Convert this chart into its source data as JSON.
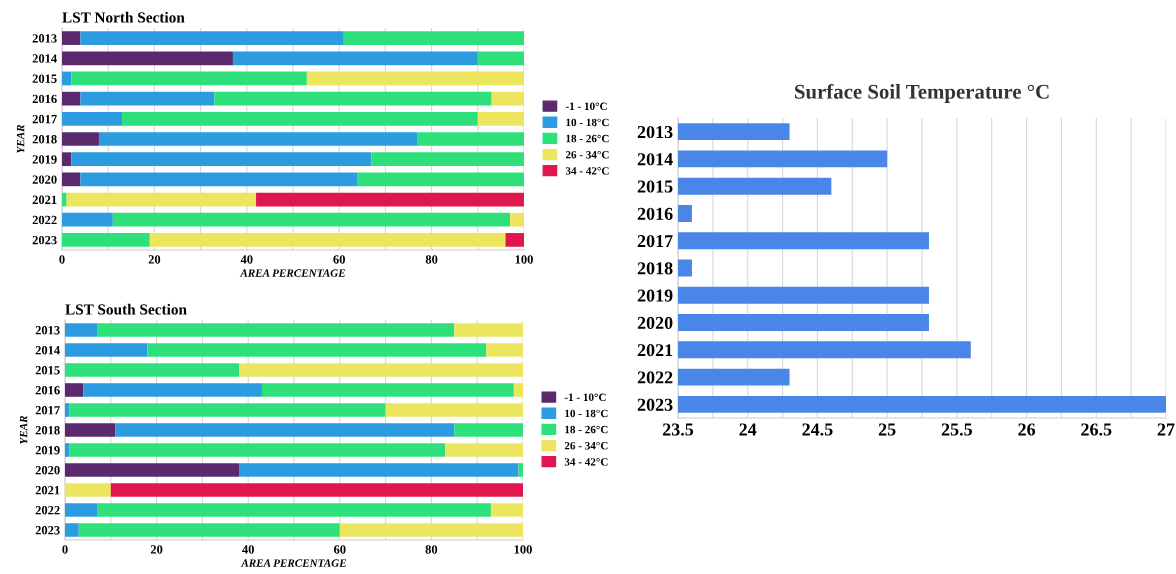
{
  "chart_data": [
    {
      "type": "bar",
      "orientation": "horizontal",
      "stacked": true,
      "title": "LST North Section",
      "xlabel": "AREA PERCENTAGE",
      "ylabel": "YEAR",
      "categories": [
        "2013",
        "2014",
        "2015",
        "2016",
        "2017",
        "2018",
        "2019",
        "2020",
        "2021",
        "2022",
        "2023"
      ],
      "series": [
        {
          "name": "-1 - 10°C",
          "color": "#5b2a6e",
          "values": [
            4,
            37,
            0,
            4,
            0,
            8,
            2,
            4,
            0,
            0,
            0
          ]
        },
        {
          "name": "10 - 18°C",
          "color": "#2d9be0",
          "values": [
            57,
            53,
            2,
            29,
            13,
            69,
            65,
            60,
            0,
            11,
            0
          ]
        },
        {
          "name": "18 - 26°C",
          "color": "#2ee07a",
          "values": [
            39,
            10,
            51,
            60,
            77,
            23,
            33,
            36,
            1,
            86,
            19
          ]
        },
        {
          "name": "26 - 34°C",
          "color": "#ece65e",
          "values": [
            0,
            0,
            47,
            7,
            10,
            0,
            0,
            0,
            41,
            3,
            77
          ]
        },
        {
          "name": "34 - 42°C",
          "color": "#e0174f",
          "values": [
            0,
            0,
            0,
            0,
            0,
            0,
            0,
            0,
            58,
            0,
            4
          ]
        }
      ],
      "xlim": [
        0,
        100
      ],
      "xticks": [
        0,
        {
          "value": 10,
          "label": null
        },
        20,
        {
          "value": 30,
          "label": null
        },
        40,
        {
          "value": 50,
          "label": null
        },
        60,
        {
          "value": 70,
          "label": null
        },
        80,
        {
          "value": 90,
          "label": null
        },
        100
      ],
      "grid": "x",
      "legend": "right"
    },
    {
      "type": "bar",
      "orientation": "horizontal",
      "stacked": true,
      "title": "LST South Section",
      "xlabel": "AREA PERCENTAGE",
      "ylabel": "YEAR",
      "categories": [
        "2013",
        "2014",
        "2015",
        "2016",
        "2017",
        "2018",
        "2019",
        "2020",
        "2021",
        "2022",
        "2023"
      ],
      "series": [
        {
          "name": "-1 - 10°C",
          "color": "#5b2a6e",
          "values": [
            0,
            0,
            0,
            4,
            0,
            11,
            0,
            38,
            0,
            0,
            0
          ]
        },
        {
          "name": "10 - 18°C",
          "color": "#2d9be0",
          "values": [
            7,
            18,
            0,
            39,
            1,
            74,
            1,
            61,
            0,
            7,
            3
          ]
        },
        {
          "name": "18 - 26°C",
          "color": "#2ee07a",
          "values": [
            78,
            74,
            38,
            55,
            69,
            15,
            82,
            1,
            0,
            86,
            57
          ]
        },
        {
          "name": "26 - 34°C",
          "color": "#ece65e",
          "values": [
            15,
            8,
            62,
            2,
            30,
            0,
            17,
            0,
            10,
            7,
            40
          ]
        },
        {
          "name": "34 - 42°C",
          "color": "#e0174f",
          "values": [
            0,
            0,
            0,
            0,
            0,
            0,
            0,
            0,
            90,
            0,
            0
          ]
        }
      ],
      "xlim": [
        0,
        100
      ],
      "xticks": [
        0,
        {
          "value": 10,
          "label": null
        },
        20,
        {
          "value": 30,
          "label": null
        },
        40,
        {
          "value": 50,
          "label": null
        },
        60,
        {
          "value": 70,
          "label": null
        },
        80,
        {
          "value": 90,
          "label": null
        },
        100
      ],
      "grid": "x",
      "legend": "right"
    },
    {
      "type": "bar",
      "orientation": "horizontal",
      "title": "Surface Soil Temperature °C",
      "categories": [
        "2013",
        "2014",
        "2015",
        "2016",
        "2017",
        "2018",
        "2019",
        "2020",
        "2021",
        "2022",
        "2023"
      ],
      "series": [
        {
          "color": "#4a86e8",
          "values": [
            24.3,
            25.0,
            24.6,
            23.6,
            25.3,
            23.6,
            25.3,
            25.3,
            25.6,
            24.3,
            27.0
          ]
        }
      ],
      "xlim": [
        23.5,
        27
      ],
      "xticks": [
        23.5,
        {
          "value": 23.75,
          "label": null
        },
        24,
        {
          "value": 24.25,
          "label": null
        },
        24.5,
        {
          "value": 24.75,
          "label": null
        },
        25,
        {
          "value": 25.25,
          "label": null
        },
        25.5,
        {
          "value": 25.75,
          "label": null
        },
        26,
        {
          "value": 26.25,
          "label": null
        },
        26.5,
        {
          "value": 26.75,
          "label": null
        },
        27
      ],
      "grid": "x"
    }
  ]
}
